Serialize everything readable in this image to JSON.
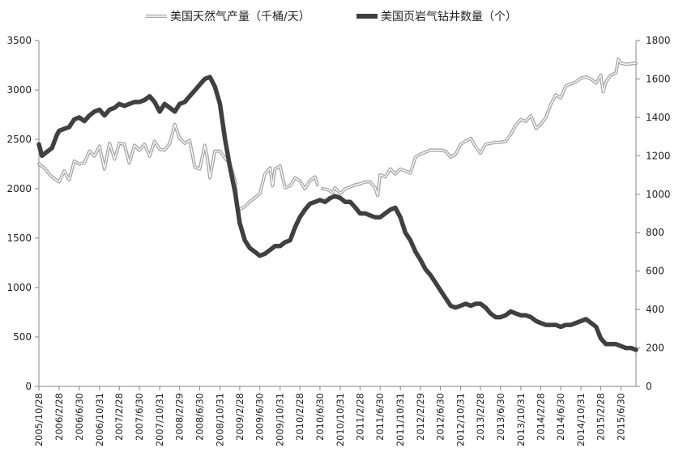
{
  "chart_data": {
    "type": "line",
    "title": "",
    "legend_position": "top",
    "grid": false,
    "x_labels": [
      "2005/10/28",
      "2006/2/28",
      "2006/6/30",
      "2006/10/31",
      "2007/2/28",
      "2007/6/30",
      "2007/10/31",
      "2008/2/29",
      "2008/6/30",
      "2008/10/31",
      "2009/2/28",
      "2009/6/30",
      "2009/10/31",
      "2010/2/28",
      "2010/6/30",
      "2010/10/31",
      "2011/2/28",
      "2011/6/30",
      "2011/10/31",
      "2012/2/29",
      "2012/6/30",
      "2012/10/31",
      "2013/2/28",
      "2013/6/30",
      "2013/10/31",
      "2014/2/28",
      "2014/6/30",
      "2014/10/31",
      "2015/2/28",
      "2015/6/30"
    ],
    "x_range": [
      "2005/10/28",
      "2015/9/30"
    ],
    "y_left": {
      "ticks": [
        "0",
        "500",
        "1000",
        "1500",
        "2000",
        "2500",
        "3000",
        "3500"
      ],
      "range": [
        0,
        3500
      ]
    },
    "y_right": {
      "ticks": [
        "0",
        "200",
        "400",
        "600",
        "800",
        "1000",
        "1200",
        "1400",
        "1600",
        "1800"
      ],
      "range": [
        0,
        1800
      ]
    },
    "series": [
      {
        "name": "美国天然气产量（千桶/天）",
        "axis": "left",
        "color": "#a6a6a6",
        "style": "double-line",
        "points": [
          [
            "2005/10/28",
            2250
          ],
          [
            "2005/11/30",
            2210
          ],
          [
            "2006/1/15",
            2120
          ],
          [
            "2006/2/28",
            2070
          ],
          [
            "2006/3/31",
            2180
          ],
          [
            "2006/4/30",
            2090
          ],
          [
            "2006/5/31",
            2280
          ],
          [
            "2006/6/30",
            2250
          ],
          [
            "2006/7/31",
            2260
          ],
          [
            "2006/8/31",
            2380
          ],
          [
            "2006/9/30",
            2330
          ],
          [
            "2006/10/31",
            2430
          ],
          [
            "2006/11/30",
            2200
          ],
          [
            "2006/12/31",
            2460
          ],
          [
            "2007/1/31",
            2300
          ],
          [
            "2007/2/28",
            2460
          ],
          [
            "2007/3/31",
            2450
          ],
          [
            "2007/4/30",
            2260
          ],
          [
            "2007/5/31",
            2440
          ],
          [
            "2007/6/30",
            2390
          ],
          [
            "2007/7/31",
            2450
          ],
          [
            "2007/8/31",
            2330
          ],
          [
            "2007/9/30",
            2480
          ],
          [
            "2007/10/31",
            2400
          ],
          [
            "2007/11/30",
            2390
          ],
          [
            "2007/12/31",
            2460
          ],
          [
            "2008/1/31",
            2650
          ],
          [
            "2008/2/29",
            2510
          ],
          [
            "2008/3/31",
            2460
          ],
          [
            "2008/4/30",
            2490
          ],
          [
            "2008/5/31",
            2220
          ],
          [
            "2008/6/30",
            2200
          ],
          [
            "2008/7/31",
            2440
          ],
          [
            "2008/8/15",
            2320
          ],
          [
            "2008/8/31",
            2110
          ],
          [
            "2008/9/30",
            2380
          ],
          [
            "2008/10/31",
            2380
          ],
          [
            "2008/11/30",
            2310
          ],
          [
            "2008/12/31",
            2250
          ],
          [
            "2009/1/31",
            2080
          ],
          [
            "2009/2/15",
            1780
          ],
          [
            "2009/2/28",
            1790
          ],
          [
            "2009/3/31",
            1820
          ],
          [
            "2009/4/30",
            1870
          ],
          [
            "2009/5/31",
            1910
          ],
          [
            "2009/6/30",
            1950
          ],
          [
            "2009/7/31",
            2150
          ],
          [
            "2009/8/31",
            2210
          ],
          [
            "2009/9/15",
            2030
          ],
          [
            "2009/9/30",
            2200
          ],
          [
            "2009/10/31",
            2230
          ],
          [
            "2009/11/30",
            2010
          ],
          [
            "2009/12/31",
            2030
          ],
          [
            "2010/1/31",
            2110
          ],
          [
            "2010/2/28",
            2080
          ],
          [
            "2010/3/31",
            2000
          ],
          [
            "2010/4/30",
            2080
          ],
          [
            "2010/5/31",
            2120
          ],
          [
            "2010/6/15",
            2040
          ],
          [
            "2010/6/30",
            null
          ],
          [
            "2010/7/15",
            2000
          ],
          [
            "2010/8/15",
            1990
          ],
          [
            "2010/9/15",
            1960
          ],
          [
            "2010/9/30",
            2010
          ],
          [
            "2010/10/31",
            1950
          ],
          [
            "2010/11/30",
            2000
          ],
          [
            "2010/12/31",
            2020
          ],
          [
            "2011/1/31",
            2040
          ],
          [
            "2011/2/28",
            2050
          ],
          [
            "2011/3/31",
            2070
          ],
          [
            "2011/4/30",
            2070
          ],
          [
            "2011/5/31",
            2010
          ],
          [
            "2011/6/15",
            1930
          ],
          [
            "2011/6/30",
            2140
          ],
          [
            "2011/7/31",
            2120
          ],
          [
            "2011/8/31",
            2200
          ],
          [
            "2011/9/30",
            2150
          ],
          [
            "2011/10/31",
            2200
          ],
          [
            "2011/11/30",
            2180
          ],
          [
            "2011/12/31",
            2160
          ],
          [
            "2012/1/31",
            2320
          ],
          [
            "2012/2/29",
            2350
          ],
          [
            "2012/3/31",
            2370
          ],
          [
            "2012/4/30",
            2390
          ],
          [
            "2012/5/31",
            2390
          ],
          [
            "2012/6/30",
            2390
          ],
          [
            "2012/7/31",
            2380
          ],
          [
            "2012/8/31",
            2320
          ],
          [
            "2012/9/30",
            2350
          ],
          [
            "2012/10/31",
            2450
          ],
          [
            "2012/11/30",
            2480
          ],
          [
            "2012/12/31",
            2510
          ],
          [
            "2013/1/31",
            2420
          ],
          [
            "2013/2/28",
            2360
          ],
          [
            "2013/3/31",
            2450
          ],
          [
            "2013/4/30",
            2460
          ],
          [
            "2013/5/31",
            2470
          ],
          [
            "2013/6/30",
            2470
          ],
          [
            "2013/7/31",
            2480
          ],
          [
            "2013/8/31",
            2550
          ],
          [
            "2013/9/30",
            2640
          ],
          [
            "2013/10/31",
            2700
          ],
          [
            "2013/11/30",
            2680
          ],
          [
            "2013/12/31",
            2740
          ],
          [
            "2014/1/31",
            2610
          ],
          [
            "2014/2/28",
            2650
          ],
          [
            "2014/3/31",
            2720
          ],
          [
            "2014/4/30",
            2850
          ],
          [
            "2014/5/31",
            2950
          ],
          [
            "2014/6/30",
            2920
          ],
          [
            "2014/7/31",
            3040
          ],
          [
            "2014/8/31",
            3060
          ],
          [
            "2014/9/30",
            3080
          ],
          [
            "2014/10/31",
            3120
          ],
          [
            "2014/11/30",
            3130
          ],
          [
            "2014/12/31",
            3110
          ],
          [
            "2015/1/31",
            3070
          ],
          [
            "2015/2/28",
            3150
          ],
          [
            "2015/3/15",
            2980
          ],
          [
            "2015/3/31",
            3080
          ],
          [
            "2015/4/30",
            3150
          ],
          [
            "2015/5/31",
            3170
          ],
          [
            "2015/6/15",
            3310
          ],
          [
            "2015/6/30",
            3270
          ],
          [
            "2015/7/31",
            3260
          ],
          [
            "2015/9/30",
            3270
          ]
        ]
      },
      {
        "name": "美国页岩气钻井数量（个）",
        "axis": "right",
        "color": "#404040",
        "style": "thick",
        "points": [
          [
            "2005/10/28",
            1260
          ],
          [
            "2005/11/15",
            1200
          ],
          [
            "2005/12/15",
            1220
          ],
          [
            "2006/1/15",
            1240
          ],
          [
            "2006/2/15",
            1310
          ],
          [
            "2006/2/28",
            1330
          ],
          [
            "2006/3/31",
            1340
          ],
          [
            "2006/4/30",
            1350
          ],
          [
            "2006/5/31",
            1390
          ],
          [
            "2006/6/30",
            1400
          ],
          [
            "2006/7/31",
            1380
          ],
          [
            "2006/8/31",
            1410
          ],
          [
            "2006/9/30",
            1430
          ],
          [
            "2006/10/31",
            1440
          ],
          [
            "2006/11/30",
            1410
          ],
          [
            "2006/12/31",
            1440
          ],
          [
            "2007/1/31",
            1450
          ],
          [
            "2007/2/28",
            1470
          ],
          [
            "2007/3/31",
            1460
          ],
          [
            "2007/4/30",
            1470
          ],
          [
            "2007/5/31",
            1480
          ],
          [
            "2007/6/30",
            1480
          ],
          [
            "2007/7/31",
            1490
          ],
          [
            "2007/8/31",
            1510
          ],
          [
            "2007/9/30",
            1480
          ],
          [
            "2007/10/31",
            1430
          ],
          [
            "2007/11/30",
            1470
          ],
          [
            "2007/12/31",
            1450
          ],
          [
            "2008/1/31",
            1430
          ],
          [
            "2008/2/29",
            1470
          ],
          [
            "2008/3/31",
            1480
          ],
          [
            "2008/4/30",
            1510
          ],
          [
            "2008/5/31",
            1540
          ],
          [
            "2008/6/30",
            1570
          ],
          [
            "2008/7/31",
            1600
          ],
          [
            "2008/8/31",
            1610
          ],
          [
            "2008/9/30",
            1560
          ],
          [
            "2008/10/31",
            1470
          ],
          [
            "2008/11/30",
            1290
          ],
          [
            "2008/12/31",
            1140
          ],
          [
            "2009/1/31",
            1010
          ],
          [
            "2009/2/28",
            850
          ],
          [
            "2009/3/31",
            760
          ],
          [
            "2009/4/30",
            720
          ],
          [
            "2009/5/31",
            700
          ],
          [
            "2009/6/30",
            680
          ],
          [
            "2009/7/31",
            690
          ],
          [
            "2009/8/31",
            710
          ],
          [
            "2009/9/30",
            730
          ],
          [
            "2009/10/31",
            730
          ],
          [
            "2009/11/30",
            750
          ],
          [
            "2009/12/31",
            760
          ],
          [
            "2010/1/31",
            830
          ],
          [
            "2010/2/28",
            880
          ],
          [
            "2010/3/31",
            920
          ],
          [
            "2010/4/30",
            950
          ],
          [
            "2010/5/31",
            960
          ],
          [
            "2010/6/30",
            970
          ],
          [
            "2010/7/31",
            960
          ],
          [
            "2010/8/31",
            980
          ],
          [
            "2010/9/30",
            990
          ],
          [
            "2010/10/31",
            980
          ],
          [
            "2010/11/30",
            960
          ],
          [
            "2010/12/31",
            960
          ],
          [
            "2011/1/31",
            930
          ],
          [
            "2011/2/28",
            900
          ],
          [
            "2011/3/31",
            900
          ],
          [
            "2011/4/30",
            890
          ],
          [
            "2011/5/31",
            880
          ],
          [
            "2011/6/30",
            880
          ],
          [
            "2011/7/31",
            900
          ],
          [
            "2011/8/31",
            920
          ],
          [
            "2011/9/30",
            930
          ],
          [
            "2011/10/31",
            880
          ],
          [
            "2011/11/30",
            800
          ],
          [
            "2011/12/31",
            760
          ],
          [
            "2012/1/31",
            700
          ],
          [
            "2012/2/29",
            660
          ],
          [
            "2012/3/31",
            610
          ],
          [
            "2012/4/30",
            580
          ],
          [
            "2012/5/31",
            540
          ],
          [
            "2012/6/30",
            500
          ],
          [
            "2012/7/31",
            460
          ],
          [
            "2012/8/31",
            420
          ],
          [
            "2012/9/30",
            410
          ],
          [
            "2012/10/31",
            420
          ],
          [
            "2012/11/30",
            430
          ],
          [
            "2012/12/31",
            420
          ],
          [
            "2013/1/31",
            430
          ],
          [
            "2013/2/28",
            430
          ],
          [
            "2013/3/31",
            410
          ],
          [
            "2013/4/30",
            380
          ],
          [
            "2013/5/31",
            360
          ],
          [
            "2013/6/30",
            360
          ],
          [
            "2013/7/31",
            370
          ],
          [
            "2013/8/31",
            390
          ],
          [
            "2013/9/30",
            380
          ],
          [
            "2013/10/31",
            370
          ],
          [
            "2013/11/30",
            370
          ],
          [
            "2013/12/31",
            360
          ],
          [
            "2014/1/31",
            340
          ],
          [
            "2014/2/28",
            330
          ],
          [
            "2014/3/31",
            320
          ],
          [
            "2014/4/30",
            320
          ],
          [
            "2014/5/31",
            320
          ],
          [
            "2014/6/30",
            310
          ],
          [
            "2014/7/31",
            320
          ],
          [
            "2014/8/31",
            320
          ],
          [
            "2014/9/30",
            330
          ],
          [
            "2014/10/31",
            340
          ],
          [
            "2014/11/30",
            350
          ],
          [
            "2014/12/31",
            330
          ],
          [
            "2015/1/31",
            310
          ],
          [
            "2015/2/28",
            250
          ],
          [
            "2015/3/31",
            220
          ],
          [
            "2015/4/30",
            220
          ],
          [
            "2015/5/31",
            220
          ],
          [
            "2015/6/30",
            210
          ],
          [
            "2015/7/31",
            200
          ],
          [
            "2015/8/31",
            200
          ],
          [
            "2015/9/30",
            190
          ]
        ]
      }
    ]
  }
}
